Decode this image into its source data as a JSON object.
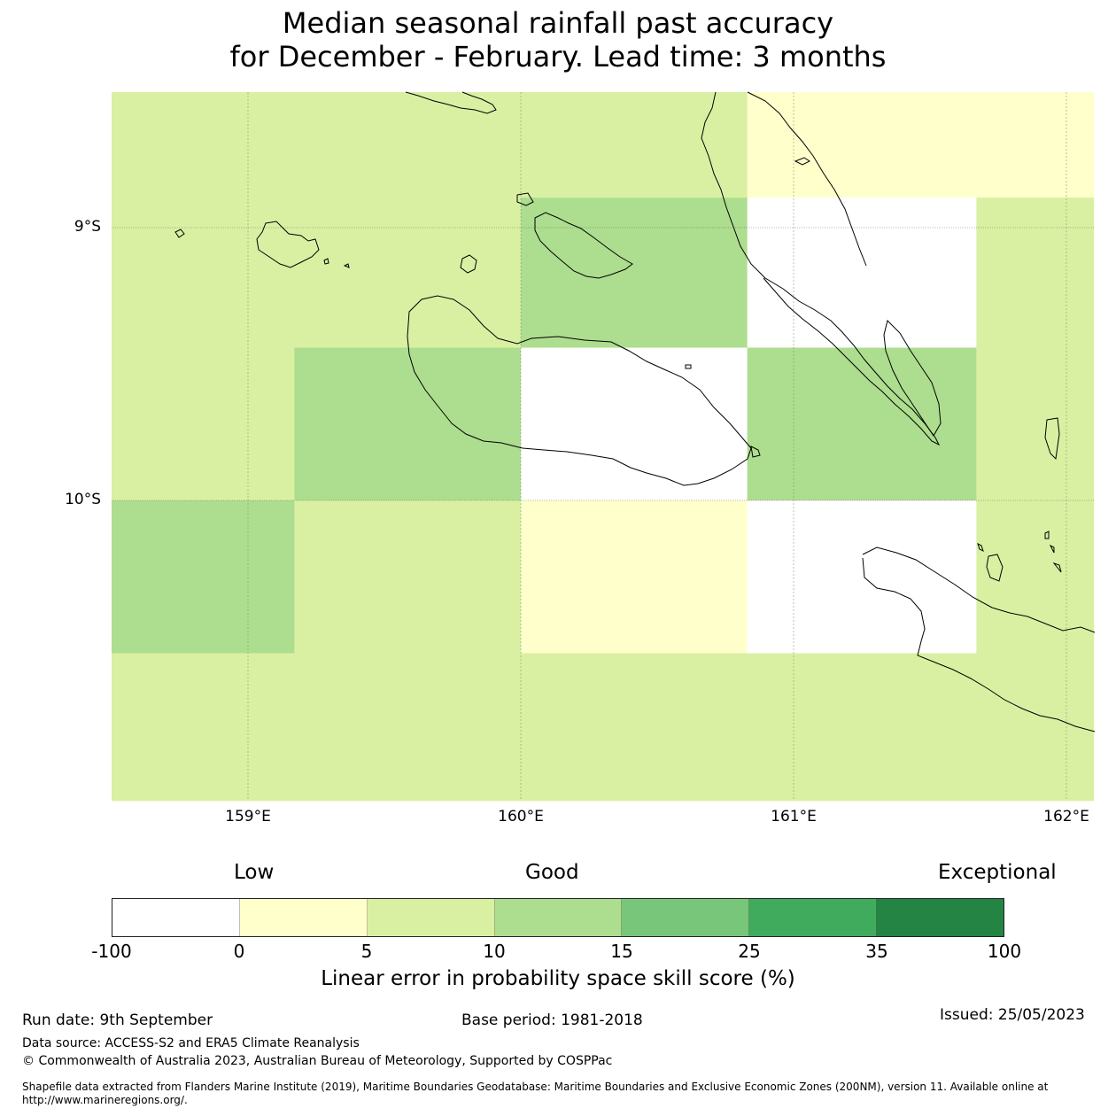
{
  "title": {
    "line1": "Median seasonal rainfall past accuracy",
    "line2": "for December - February. Lead time: 3 months"
  },
  "map": {
    "lon_range": [
      158.5,
      162.1
    ],
    "lat_range": [
      -8.5,
      -11.1
    ],
    "lat_ticks": [
      {
        "label": "9°S",
        "value": -9
      },
      {
        "label": "10°S",
        "value": -10
      }
    ],
    "lon_ticks": [
      {
        "label": "159°E",
        "value": 159
      },
      {
        "label": "160°E",
        "value": 160
      },
      {
        "label": "161°E",
        "value": 161
      },
      {
        "label": "162°E",
        "value": 162
      }
    ],
    "cells": [
      {
        "lon": [
          158.5,
          160.83
        ],
        "lat": [
          -8.5,
          -8.89
        ],
        "class": "5-10"
      },
      {
        "lon": [
          160.83,
          162.1
        ],
        "lat": [
          -8.5,
          -8.89
        ],
        "class": "0-5"
      },
      {
        "lon": [
          158.5,
          160.0
        ],
        "lat": [
          -8.89,
          -9.44
        ],
        "class": "5-10"
      },
      {
        "lon": [
          160.0,
          160.83
        ],
        "lat": [
          -8.89,
          -9.44
        ],
        "class": "10-15"
      },
      {
        "lon": [
          160.83,
          161.67
        ],
        "lat": [
          -8.89,
          -9.44
        ],
        "class": "below-0"
      },
      {
        "lon": [
          161.67,
          162.1
        ],
        "lat": [
          -8.89,
          -9.44
        ],
        "class": "5-10"
      },
      {
        "lon": [
          158.5,
          159.17
        ],
        "lat": [
          -9.44,
          -10.0
        ],
        "class": "5-10"
      },
      {
        "lon": [
          159.17,
          160.0
        ],
        "lat": [
          -9.44,
          -10.0
        ],
        "class": "10-15"
      },
      {
        "lon": [
          160.0,
          160.83
        ],
        "lat": [
          -9.44,
          -10.0
        ],
        "class": "below-0"
      },
      {
        "lon": [
          160.83,
          161.67
        ],
        "lat": [
          -9.44,
          -10.0
        ],
        "class": "10-15"
      },
      {
        "lon": [
          161.67,
          162.1
        ],
        "lat": [
          -9.44,
          -10.0
        ],
        "class": "5-10"
      },
      {
        "lon": [
          158.5,
          159.17
        ],
        "lat": [
          -10.0,
          -10.56
        ],
        "class": "10-15"
      },
      {
        "lon": [
          159.17,
          160.0
        ],
        "lat": [
          -10.0,
          -10.56
        ],
        "class": "5-10"
      },
      {
        "lon": [
          160.0,
          160.83
        ],
        "lat": [
          -10.0,
          -10.56
        ],
        "class": "0-5"
      },
      {
        "lon": [
          160.83,
          161.67
        ],
        "lat": [
          -10.0,
          -10.56
        ],
        "class": "below-0"
      },
      {
        "lon": [
          161.67,
          162.1
        ],
        "lat": [
          -10.0,
          -10.56
        ],
        "class": "5-10"
      },
      {
        "lon": [
          158.5,
          162.1
        ],
        "lat": [
          -10.56,
          -11.1
        ],
        "class": "5-10"
      }
    ]
  },
  "legend": {
    "categories": {
      "low": "Low",
      "good": "Good",
      "exceptional": "Exceptional"
    },
    "segments": [
      {
        "class": "below-0",
        "color": "#ffffff"
      },
      {
        "class": "0-5",
        "color": "#ffffcc"
      },
      {
        "class": "5-10",
        "color": "#d9f0a3"
      },
      {
        "class": "10-15",
        "color": "#addd8e"
      },
      {
        "class": "15-25",
        "color": "#78c679"
      },
      {
        "class": "25-35",
        "color": "#41ab5d"
      },
      {
        "class": "35-100",
        "color": "#238443"
      }
    ],
    "ticks": [
      "-100",
      "0",
      "5",
      "10",
      "15",
      "25",
      "35",
      "100"
    ],
    "label": "Linear error in probability space skill score (%)"
  },
  "footer": {
    "run_date": "Run date: 9th September",
    "base_period": "Base period: 1981-2018",
    "issued": "Issued: 25/05/2023",
    "data_source": "Data source: ACCESS-S2 and ERA5 Climate Reanalysis",
    "copyright": "© Commonwealth of Australia 2023, Australian Bureau of Meteorology, Supported by COSPPac",
    "shapefile": "Shapefile data extracted from Flanders Marine Institute (2019), Maritime Boundaries Geodatabase: Maritime Boundaries and Exclusive Economic Zones (200NM), version 11. Available online at http://www.marineregions.org/."
  }
}
